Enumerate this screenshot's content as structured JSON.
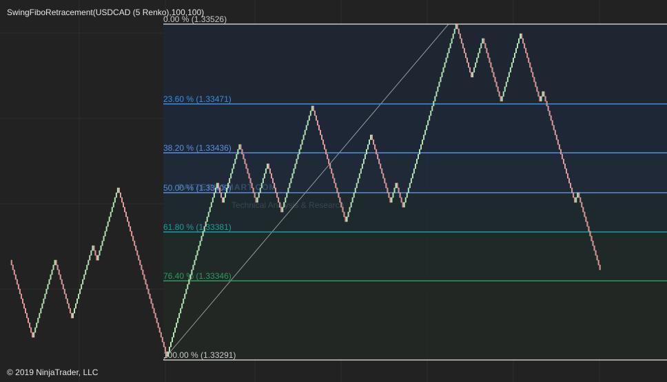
{
  "header": {
    "title": "SwingFiboRetracement(USDCAD (5 Renko),100,100)"
  },
  "levels": [
    {
      "label": "0.00 % (1.33526)",
      "color": "#c8c8c8"
    },
    {
      "label": "23.60 % (1.33471)",
      "color": "#3d8ee0"
    },
    {
      "label": "38.20 % (1.33436)",
      "color": "#5a90e0"
    },
    {
      "label": "50.00 % (1.33409)",
      "color": "#5a8cd8"
    },
    {
      "label": "61.80 % (1.33381)",
      "color": "#1a9e9e"
    },
    {
      "label": "76.40 % (1.33346)",
      "color": "#2e9a60"
    },
    {
      "label": "100.00 % (1.33291)",
      "color": "#c8c8c8"
    }
  ],
  "watermark": {
    "title": "PATTERNSMART.COM",
    "subtitle": "Technical Analysis & Research"
  },
  "footer": {
    "copyright": "© 2019 NinjaTrader, LLC"
  }
}
